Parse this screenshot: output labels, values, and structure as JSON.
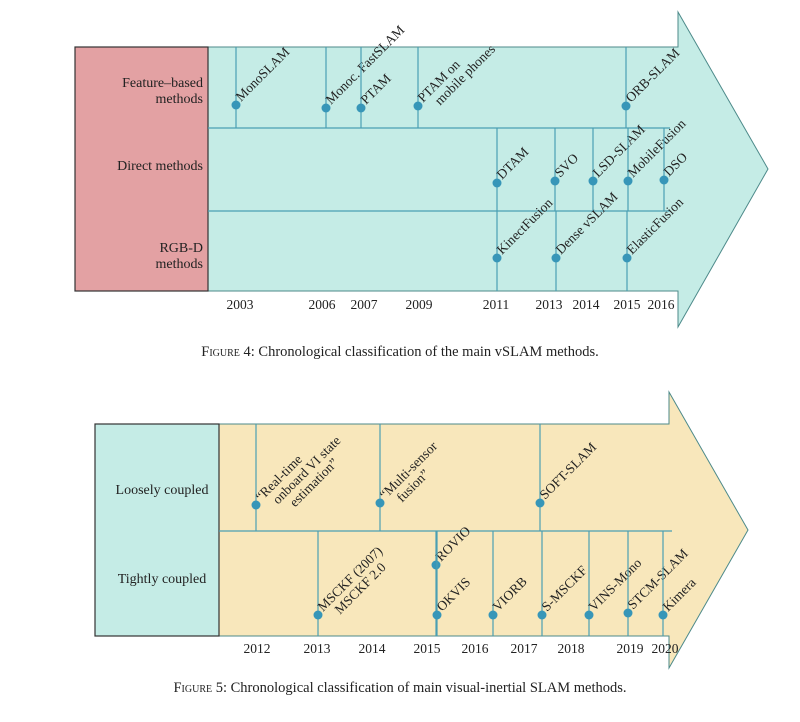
{
  "colors": {
    "fig4_fill": "#c5ece6",
    "fig4_box": "#e3a1a3",
    "fig5_fill": "#f8e7bb",
    "fig5_box": "#c5ece6",
    "line": "#4a9fb3",
    "point": "#3796b8",
    "outline": "#4d8a8a"
  },
  "fig4": {
    "rows": [
      {
        "label": [
          "Feature–based",
          "methods"
        ]
      },
      {
        "label": [
          "Direct methods"
        ]
      },
      {
        "label": [
          "RGB-D",
          "methods"
        ]
      }
    ],
    "years": [
      "2003",
      "2006",
      "2007",
      "2009",
      "2011",
      "2013",
      "2014",
      "2015",
      "2016"
    ],
    "events": [
      {
        "label": [
          "MonoSLAM"
        ],
        "row": 0,
        "year": "2003"
      },
      {
        "label": [
          "Monoc. FastSLAM"
        ],
        "row": 0,
        "year": "2006"
      },
      {
        "label": [
          "PTAM"
        ],
        "row": 0,
        "year": "2007"
      },
      {
        "label": [
          "PTAM on",
          "mobile phones"
        ],
        "row": 0,
        "year": "2009"
      },
      {
        "label": [
          "ORB-SLAM"
        ],
        "row": 0,
        "year": "2015"
      },
      {
        "label": [
          "DTAM"
        ],
        "row": 1,
        "year": "2011"
      },
      {
        "label": [
          "SVO"
        ],
        "row": 1,
        "year": "2013"
      },
      {
        "label": [
          "LSD-SLAM"
        ],
        "row": 1,
        "year": "2014"
      },
      {
        "label": [
          "MobileFusion"
        ],
        "row": 1,
        "year": "2015"
      },
      {
        "label": [
          "DSO"
        ],
        "row": 1,
        "year": "2016"
      },
      {
        "label": [
          "KinectFusion"
        ],
        "row": 2,
        "year": "2011"
      },
      {
        "label": [
          "Dense vSLAM"
        ],
        "row": 2,
        "year": "2013"
      },
      {
        "label": [
          "ElasticFusion"
        ],
        "row": 2,
        "year": "2015"
      }
    ],
    "caption_label": "Figure 4:",
    "caption_text": " Chronological classification of the main vSLAM methods."
  },
  "fig5": {
    "rows": [
      {
        "label": [
          "Loosely coupled"
        ]
      },
      {
        "label": [
          "Tightly coupled"
        ]
      }
    ],
    "years": [
      "2012",
      "2013",
      "2014",
      "2015",
      "2016",
      "2017",
      "2018",
      "2019",
      "2020"
    ],
    "events": [
      {
        "label": [
          "“Real-time",
          "onboard VI state",
          "estimation”"
        ],
        "row": 0,
        "year": "2012"
      },
      {
        "label": [
          "“Multi-sensor",
          "fusion”"
        ],
        "row": 0,
        "year": "2014"
      },
      {
        "label": [
          "SOFT-SLAM"
        ],
        "row": 0,
        "year": "2017"
      },
      {
        "label": [
          "MSCKF (2007)",
          "MSCKF 2.0"
        ],
        "row": 1,
        "year": "2013"
      },
      {
        "label": [
          "ROVIO"
        ],
        "row": 1,
        "year": "2015"
      },
      {
        "label": [
          "OKVIS"
        ],
        "row": 1,
        "year": "2015"
      },
      {
        "label": [
          "VIORB"
        ],
        "row": 1,
        "year": "2016"
      },
      {
        "label": [
          "S-MSCKF"
        ],
        "row": 1,
        "year": "2017"
      },
      {
        "label": [
          "VINS-Mono"
        ],
        "row": 1,
        "year": "2018"
      },
      {
        "label": [
          "STCM-SLAM"
        ],
        "row": 1,
        "year": "2019"
      },
      {
        "label": [
          "Kimera"
        ],
        "row": 1,
        "year": "2020"
      }
    ],
    "caption_label": "Figure 5:",
    "caption_text": " Chronological classification of main visual-inertial SLAM methods."
  }
}
